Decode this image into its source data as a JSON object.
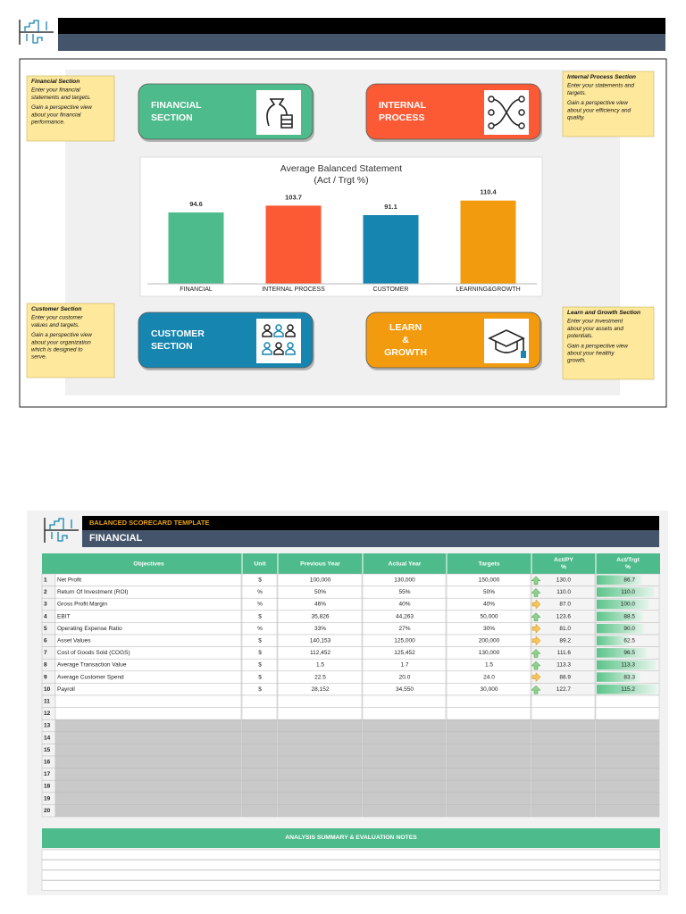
{
  "dashboard": {
    "cards": [
      {
        "lines": [
          "FINANCIAL",
          "SECTION"
        ],
        "color": "#4dbb8b"
      },
      {
        "lines": [
          "INTERNAL",
          "PROCESS"
        ],
        "color": "#fb5a35"
      },
      {
        "lines": [
          "CUSTOMER",
          "SECTION"
        ],
        "color": "#1685b0"
      },
      {
        "lines": [
          "LEARN",
          "&",
          "GROWTH"
        ],
        "color": "#f29b0e"
      }
    ],
    "notes": [
      {
        "title": "Financial Section",
        "lines": [
          "Enter your financial",
          "statements and targets.",
          "Gain a perspective view",
          "about your financial",
          "performance."
        ]
      },
      {
        "title": "Internal Process Section",
        "lines": [
          "Enter your statements and",
          "targets.",
          "Gain a perspective view",
          "about your efficiency and",
          "quality."
        ]
      },
      {
        "title": "Customer Section",
        "lines": [
          "Enter your customer",
          "values and targets.",
          "Gain a perspective view",
          "about your organization",
          "which is designed to",
          "serve."
        ]
      },
      {
        "title": "Learn and Growth Section",
        "lines": [
          "Enter your investment",
          "about your assets and",
          "potentials.",
          "Gain a perspective view",
          "about your healthy",
          "growth."
        ]
      }
    ]
  },
  "chart_data": {
    "type": "bar",
    "title": "Average Balanced Statement",
    "subtitle": "(Act / Trgt %)",
    "categories": [
      "FINANCIAL",
      "INTERNAL PROCESS",
      "CUSTOMER",
      "LEARNING&GROWTH"
    ],
    "values": [
      94.6,
      103.7,
      91.1,
      110.4
    ],
    "colors": [
      "#4dbb8b",
      "#fb5a35",
      "#1685b0",
      "#f29b0e"
    ]
  },
  "header": {
    "template": "BALANCED SCORECARD TEMPLATE",
    "section": "FINANCIAL"
  },
  "table": {
    "columns": [
      "Objectives",
      "Unit",
      "Previous Year",
      "Actual Year",
      "Targets",
      [
        "Act/PY",
        "%"
      ],
      [
        "Act/Trgt",
        "%"
      ]
    ],
    "rows": [
      [
        "1",
        "Net Profit",
        "$",
        "100,000",
        "130,000",
        "150,000",
        "130.0",
        "86.7"
      ],
      [
        "2",
        "Return Of Investment (ROI)",
        "%",
        "50%",
        "55%",
        "50%",
        "110.0",
        "110.0"
      ],
      [
        "3",
        "Gross Profit Margin",
        "%",
        "46%",
        "40%",
        "40%",
        "87.0",
        "100.0"
      ],
      [
        "4",
        "EBIT",
        "$",
        "35,826",
        "44,263",
        "50,000",
        "123.6",
        "88.5"
      ],
      [
        "5",
        "Operating Expense Ratio",
        "%",
        "33%",
        "27%",
        "30%",
        "81.0",
        "90.0"
      ],
      [
        "6",
        "Asset Values",
        "$",
        "140,153",
        "125,000",
        "200,000",
        "89.2",
        "62.5"
      ],
      [
        "7",
        "Cost of Goods Sold (COGS)",
        "$",
        "112,452",
        "125,452",
        "130,000",
        "111.6",
        "96.5"
      ],
      [
        "8",
        "Average Transaction Value",
        "$",
        "1.5",
        "1.7",
        "1.5",
        "113.3",
        "113.3"
      ],
      [
        "9",
        "Average Customer Spend",
        "$",
        "22.5",
        "20.0",
        "24.0",
        "88.9",
        "83.3"
      ],
      [
        "10",
        "Payroll",
        "$",
        "28,152",
        "34,550",
        "30,000",
        "122.7",
        "115.2"
      ],
      [
        "11"
      ],
      [
        "12"
      ],
      [
        "13"
      ],
      [
        "14"
      ],
      [
        "15"
      ],
      [
        "16"
      ],
      [
        "17"
      ],
      [
        "18"
      ],
      [
        "19"
      ],
      [
        "20"
      ]
    ],
    "summary_title": "ANALYSIS SUMMARY & EVALUATION NOTES"
  }
}
